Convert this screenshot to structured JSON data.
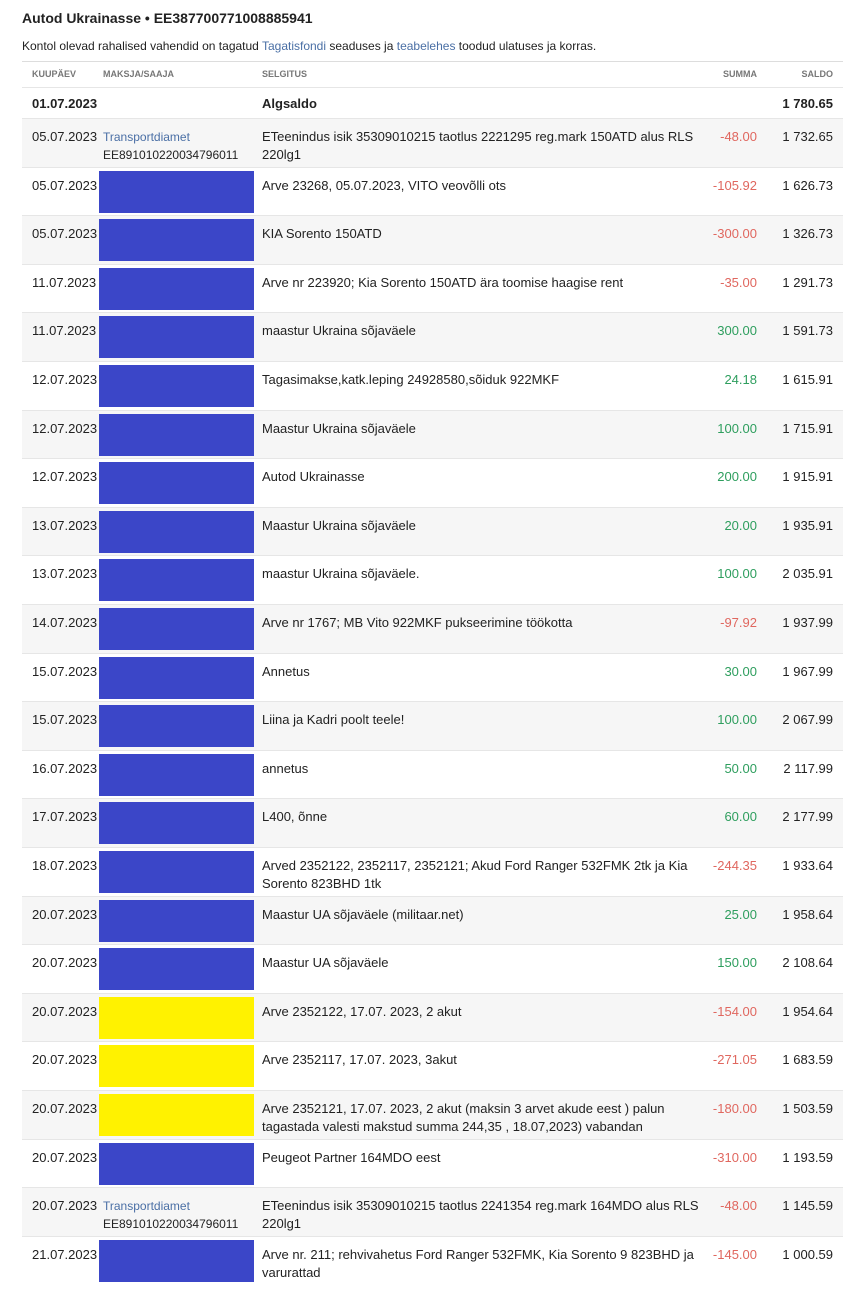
{
  "header": {
    "title": "Autod Ukrainasse • EE387700771008885941",
    "notice": [
      {
        "text": "Kontol olevad rahalised vahendid on tagatud "
      },
      {
        "text": "Tagatisfondi",
        "link": true
      },
      {
        "text": " seaduses ja "
      },
      {
        "text": "teabelehes",
        "link": true
      },
      {
        "text": " toodud ulatuses ja korras."
      }
    ]
  },
  "table": {
    "columns": [
      "KUUPÄEV",
      "MAKSJA/SAAJA",
      "SELGITUS",
      "SUMMA",
      "SALDO"
    ],
    "opening": {
      "date": "01.07.2023",
      "label": "Algsaldo",
      "balance": "1 780.65"
    },
    "rows": [
      {
        "date": "05.07.2023",
        "payer": "Transportdiamet",
        "account": "EE891010220034796011",
        "text": "ETeenindus isik 35309010215 taotlus 2221295 reg.mark 150ATD alus RLS 220lg1",
        "amount": "-48.00",
        "balance": "1 732.65"
      },
      {
        "date": "05.07.2023",
        "mask": "#3b46c8",
        "text": "Arve 23268, 05.07.2023, VITO veovõlli ots",
        "amount": "-105.92",
        "balance": "1 626.73"
      },
      {
        "date": "05.07.2023",
        "mask": "#3b46c8",
        "text": "KIA Sorento 150ATD",
        "amount": "-300.00",
        "balance": "1 326.73"
      },
      {
        "date": "11.07.2023",
        "mask": "#3b46c8",
        "text": "Arve nr 223920; Kia Sorento 150ATD ära toomise haagise rent",
        "amount": "-35.00",
        "balance": "1 291.73"
      },
      {
        "date": "11.07.2023",
        "mask": "#3b46c8",
        "text": "maastur Ukraina sõjaväele",
        "amount": "300.00",
        "balance": "1 591.73"
      },
      {
        "date": "12.07.2023",
        "mask": "#3b46c8",
        "text": "Tagasimakse,katk.leping 24928580,sõiduk 922MKF",
        "amount": "24.18",
        "balance": "1 615.91"
      },
      {
        "date": "12.07.2023",
        "mask": "#3b46c8",
        "text": "Maastur Ukraina sõjaväele",
        "amount": "100.00",
        "balance": "1 715.91"
      },
      {
        "date": "12.07.2023",
        "mask": "#3b46c8",
        "text": "Autod Ukrainasse",
        "amount": "200.00",
        "balance": "1 915.91"
      },
      {
        "date": "13.07.2023",
        "mask": "#3b46c8",
        "text": "Maastur Ukraina sõjaväele",
        "amount": "20.00",
        "balance": "1 935.91"
      },
      {
        "date": "13.07.2023",
        "mask": "#3b46c8",
        "text": "maastur Ukraina sõjaväele.",
        "amount": "100.00",
        "balance": "2 035.91"
      },
      {
        "date": "14.07.2023",
        "mask": "#3b46c8",
        "text": "Arve nr 1767; MB Vito 922MKF pukseerimine töökotta",
        "amount": "-97.92",
        "balance": "1 937.99"
      },
      {
        "date": "15.07.2023",
        "mask": "#3b46c8",
        "text": "Annetus",
        "amount": "30.00",
        "balance": "1 967.99"
      },
      {
        "date": "15.07.2023",
        "mask": "#3b46c8",
        "text": "Liina ja Kadri poolt teele!",
        "amount": "100.00",
        "balance": "2 067.99"
      },
      {
        "date": "16.07.2023",
        "mask": "#3b46c8",
        "text": "annetus",
        "amount": "50.00",
        "balance": "2 117.99"
      },
      {
        "date": "17.07.2023",
        "mask": "#3b46c8",
        "text": "L400, õnne",
        "amount": "60.00",
        "balance": "2 177.99"
      },
      {
        "date": "18.07.2023",
        "mask": "#3b46c8",
        "text": "Arved 2352122, 2352117, 2352121; Akud Ford Ranger 532FMK 2tk ja Kia Sorento 823BHD 1tk",
        "amount": "-244.35",
        "balance": "1 933.64"
      },
      {
        "date": "20.07.2023",
        "mask": "#3b46c8",
        "text": "Maastur UA sõjaväele (militaar.net)",
        "amount": "25.00",
        "balance": "1 958.64"
      },
      {
        "date": "20.07.2023",
        "mask": "#3b46c8",
        "text": "Maastur UA sõjaväele",
        "amount": "150.00",
        "balance": "2 108.64"
      },
      {
        "date": "20.07.2023",
        "mask": "#fff200",
        "text": "Arve 2352122, 17.07. 2023, 2 akut",
        "amount": "-154.00",
        "balance": "1 954.64"
      },
      {
        "date": "20.07.2023",
        "mask": "#fff200",
        "text": "Arve 2352117, 17.07. 2023, 3akut",
        "amount": "-271.05",
        "balance": "1 683.59"
      },
      {
        "date": "20.07.2023",
        "mask": "#fff200",
        "text": "Arve 2352121, 17.07. 2023, 2 akut (maksin 3 arvet akude eest ) palun tagastada valesti makstud summa 244,35 , 18.07,2023) vabandan",
        "amount": "-180.00",
        "balance": "1 503.59"
      },
      {
        "date": "20.07.2023",
        "mask": "#3b46c8",
        "text": "Peugeot Partner 164MDO eest",
        "amount": "-310.00",
        "balance": "1 193.59"
      },
      {
        "date": "20.07.2023",
        "payer": "Transportdiamet",
        "account": "EE891010220034796011",
        "text": "ETeenindus isik 35309010215 taotlus 2241354 reg.mark 164MDO alus RLS 220lg1",
        "amount": "-48.00",
        "balance": "1 145.59"
      },
      {
        "date": "21.07.2023",
        "mask": "#3b46c8",
        "text": "Arve nr. 211; rehvivahetus Ford Ranger 532FMK, Kia Sorento 9 823BHD ja varurattad",
        "amount": "-145.00",
        "balance": "1 000.59"
      }
    ]
  }
}
